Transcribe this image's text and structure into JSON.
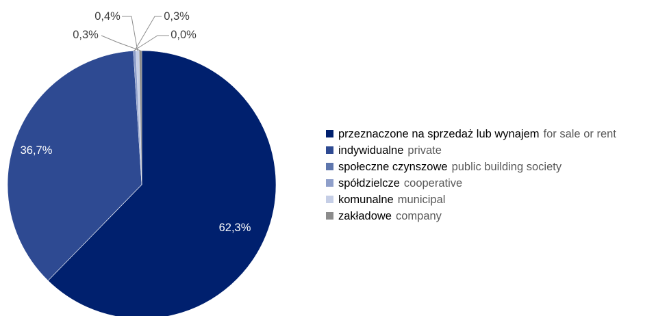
{
  "chart_data": {
    "type": "pie",
    "categories": [
      "przeznaczone na sprzedaż lub wynajem",
      "indywidualne",
      "społeczne czynszowe",
      "spółdzielcze",
      "komunalne",
      "zakładowe"
    ],
    "values": [
      62.3,
      36.7,
      0.0,
      0.3,
      0.4,
      0.3
    ],
    "data_labels": [
      "62,3%",
      "36,7%",
      "0,0%",
      "0,3%",
      "0,4%",
      "0,3%"
    ],
    "colors": [
      "#00206e",
      "#2e4a92",
      "#5e76ad",
      "#8f9fca",
      "#c5cee6",
      "#8c8c8c"
    ],
    "legend_position": "right"
  },
  "legend": {
    "items": [
      {
        "pl": "przeznaczone na sprzedaż lub wynajem",
        "en": "for sale or rent",
        "color": "#00206e"
      },
      {
        "pl": "indywidualne",
        "en": "private",
        "color": "#2e4a92"
      },
      {
        "pl": "społeczne czynszowe",
        "en": "public building society",
        "color": "#5e76ad"
      },
      {
        "pl": "spółdzielcze",
        "en": "cooperative",
        "color": "#8f9fca"
      },
      {
        "pl": "komunalne",
        "en": "municipal",
        "color": "#c5cee6"
      },
      {
        "pl": "zakładowe",
        "en": "company",
        "color": "#8c8c8c"
      }
    ]
  }
}
